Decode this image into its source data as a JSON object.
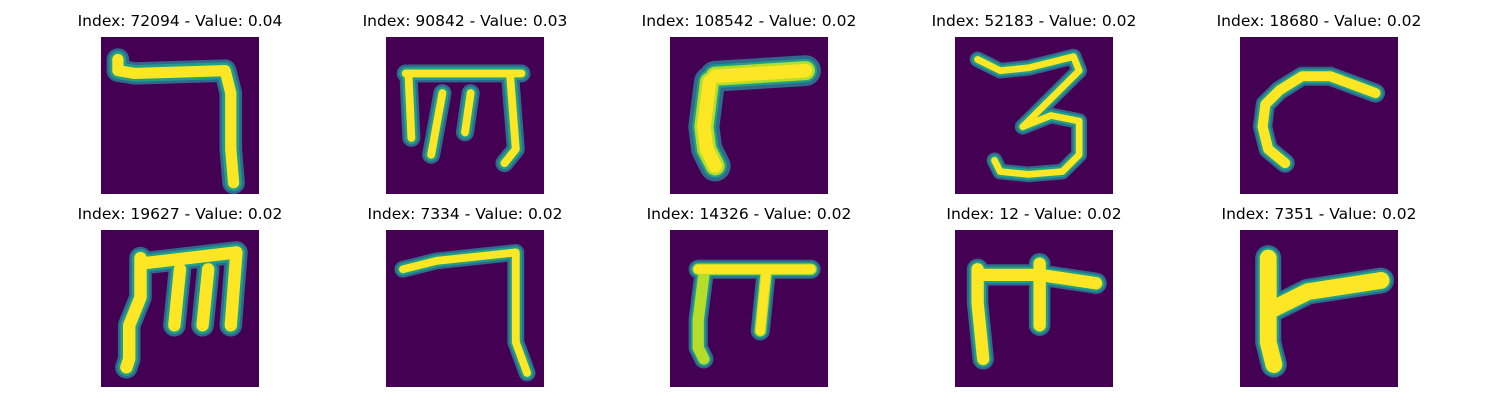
{
  "colors": {
    "background": "#440154",
    "stroke_core": "#fde725",
    "stroke_mid": "#b5de2b",
    "stroke_edge": "#1f9e89",
    "stroke_halo": "#31688e"
  },
  "panels": [
    {
      "index": "72094",
      "value": "0.04",
      "title": "Index: 72094 - Value: 0.04",
      "glyph": "reverse-seven-icon"
    },
    {
      "index": "90842",
      "value": "0.03",
      "title": "Index: 90842 - Value: 0.03",
      "glyph": "m-shape-icon"
    },
    {
      "index": "108542",
      "value": "0.02",
      "title": "Index: 108542 - Value: 0.02",
      "glyph": "bent-stroke-icon"
    },
    {
      "index": "52183",
      "value": "0.02",
      "title": "Index: 52183 - Value: 0.02",
      "glyph": "three-shape-icon"
    },
    {
      "index": "18680",
      "value": "0.02",
      "title": "Index: 18680 - Value: 0.02",
      "glyph": "hook-shape-icon"
    },
    {
      "index": "19627",
      "value": "0.02",
      "title": "Index: 19627 - Value: 0.02",
      "glyph": "m-shape-icon"
    },
    {
      "index": "7334",
      "value": "0.02",
      "title": "Index: 7334 - Value: 0.02",
      "glyph": "reverse-seven-icon"
    },
    {
      "index": "14326",
      "value": "0.02",
      "title": "Index: 14326 - Value: 0.02",
      "glyph": "pi-shape-icon"
    },
    {
      "index": "12",
      "value": "0.02",
      "title": "Index: 12 - Value: 0.02",
      "glyph": "t-shape-icon"
    },
    {
      "index": "7351",
      "value": "0.02",
      "title": "Index: 7351 - Value: 0.02",
      "glyph": "l-flag-shape-icon"
    }
  ]
}
